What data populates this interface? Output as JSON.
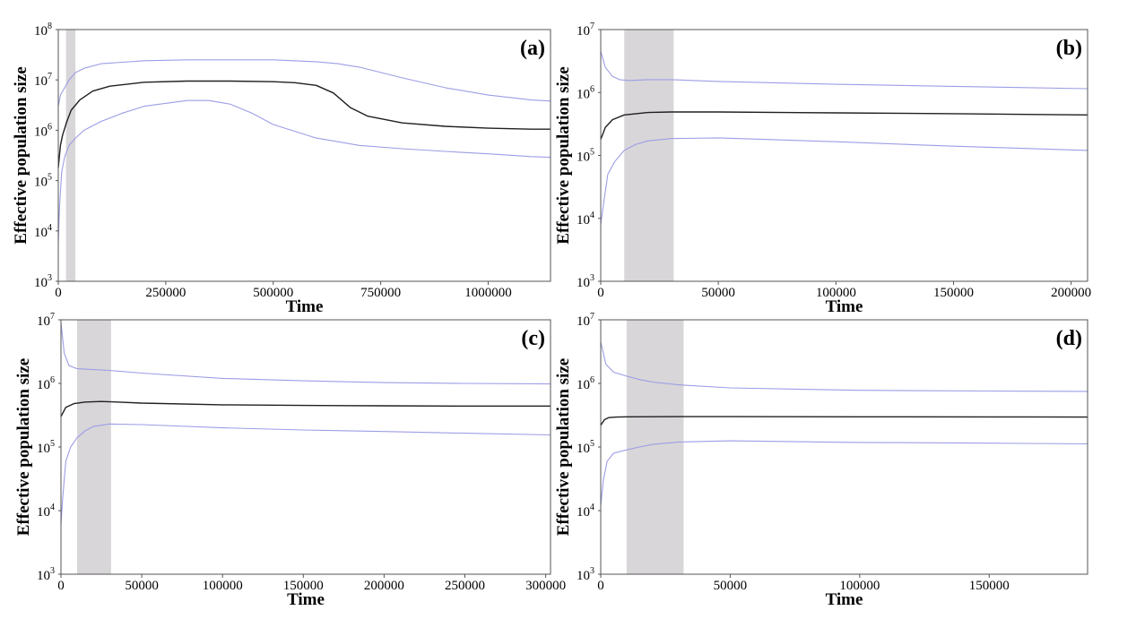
{
  "colors": {
    "median": "#202020",
    "hpd": "#9d9de6",
    "shade": "#d8d6d8",
    "frame": "#555555"
  },
  "chart_data": [
    {
      "type": "line",
      "panel_label": "(a)",
      "xlabel": "Time",
      "ylabel": "Effective population size",
      "yscale": "log",
      "xlim": [
        0,
        1145000
      ],
      "ylim": [
        1000,
        100000000
      ],
      "xticks": [
        0,
        250000,
        500000,
        750000,
        1000000
      ],
      "xtick_labels": [
        "0",
        "250000",
        "500000",
        "750000",
        "1000000"
      ],
      "ytick_exponents": [
        3,
        4,
        5,
        6,
        7,
        8
      ],
      "shaded_region": [
        18000,
        40000
      ],
      "series": [
        {
          "role": "upper",
          "x": [
            0,
            5000,
            15000,
            25000,
            40000,
            60000,
            100000,
            200000,
            300000,
            400000,
            500000,
            600000,
            650000,
            700000,
            800000,
            900000,
            1000000,
            1100000,
            1145000
          ],
          "y": [
            3000000,
            5000000,
            7000000,
            10000000,
            14000000,
            17000000,
            21000000,
            24000000,
            25000000,
            25000000,
            25000000,
            23000000,
            21000000,
            18000000,
            11000000,
            7000000,
            5000000,
            4000000,
            3800000
          ]
        },
        {
          "role": "median",
          "x": [
            0,
            5000,
            10000,
            20000,
            30000,
            50000,
            80000,
            120000,
            200000,
            300000,
            400000,
            500000,
            550000,
            600000,
            640000,
            680000,
            720000,
            800000,
            900000,
            1000000,
            1100000,
            1145000
          ],
          "y": [
            180000,
            500000,
            800000,
            1500000,
            2500000,
            4000000,
            6000000,
            7500000,
            9000000,
            9500000,
            9500000,
            9200000,
            8800000,
            7800000,
            5500000,
            2800000,
            1900000,
            1400000,
            1200000,
            1100000,
            1050000,
            1050000
          ]
        },
        {
          "role": "lower",
          "x": [
            0,
            3000,
            8000,
            15000,
            25000,
            40000,
            60000,
            100000,
            150000,
            200000,
            300000,
            350000,
            400000,
            450000,
            500000,
            600000,
            700000,
            800000,
            900000,
            1000000,
            1100000,
            1145000
          ],
          "y": [
            6000,
            30000,
            150000,
            300000,
            500000,
            700000,
            1000000,
            1500000,
            2200000,
            3000000,
            3900000,
            3900000,
            3300000,
            2200000,
            1300000,
            700000,
            500000,
            430000,
            380000,
            340000,
            300000,
            290000
          ]
        }
      ]
    },
    {
      "type": "line",
      "panel_label": "(b)",
      "xlabel": "Time",
      "ylabel": "Effective population size",
      "yscale": "log",
      "xlim": [
        0,
        207000
      ],
      "ylim": [
        1000,
        10000000
      ],
      "xticks": [
        0,
        50000,
        100000,
        150000,
        200000
      ],
      "xtick_labels": [
        "0",
        "50000",
        "100000",
        "150000",
        "200000"
      ],
      "ytick_exponents": [
        3,
        4,
        5,
        6,
        7
      ],
      "shaded_region": [
        10000,
        31000
      ],
      "series": [
        {
          "role": "upper",
          "x": [
            0,
            2000,
            5000,
            8000,
            12000,
            20000,
            30000,
            50000,
            100000,
            150000,
            207000
          ],
          "y": [
            4500000,
            2500000,
            1800000,
            1600000,
            1550000,
            1600000,
            1600000,
            1500000,
            1350000,
            1250000,
            1150000
          ]
        },
        {
          "role": "median",
          "x": [
            0,
            2000,
            5000,
            10000,
            20000,
            30000,
            50000,
            100000,
            150000,
            207000
          ],
          "y": [
            180000,
            280000,
            370000,
            440000,
            480000,
            490000,
            490000,
            475000,
            460000,
            440000
          ]
        },
        {
          "role": "lower",
          "x": [
            0,
            1000,
            3000,
            6000,
            10000,
            15000,
            20000,
            30000,
            50000,
            100000,
            150000,
            207000
          ],
          "y": [
            8000,
            15000,
            50000,
            80000,
            120000,
            150000,
            170000,
            185000,
            190000,
            165000,
            140000,
            120000
          ]
        }
      ]
    },
    {
      "type": "line",
      "panel_label": "(c)",
      "xlabel": "Time",
      "ylabel": "Effective population size",
      "yscale": "log",
      "xlim": [
        0,
        303000
      ],
      "ylim": [
        1000,
        10000000
      ],
      "xticks": [
        0,
        50000,
        100000,
        150000,
        200000,
        250000,
        300000
      ],
      "xtick_labels": [
        "0",
        "50000",
        "100000",
        "150000",
        "200000",
        "250000",
        "300000"
      ],
      "ytick_exponents": [
        3,
        4,
        5,
        6,
        7
      ],
      "shaded_region": [
        10000,
        31000
      ],
      "series": [
        {
          "role": "upper",
          "x": [
            0,
            2000,
            5000,
            10000,
            20000,
            30000,
            50000,
            100000,
            150000,
            200000,
            250000,
            303000
          ],
          "y": [
            9000000,
            3000000,
            1900000,
            1700000,
            1650000,
            1600000,
            1450000,
            1200000,
            1100000,
            1030000,
            1000000,
            980000
          ]
        },
        {
          "role": "median",
          "x": [
            0,
            3000,
            8000,
            15000,
            25000,
            35000,
            50000,
            100000,
            150000,
            200000,
            250000,
            303000
          ],
          "y": [
            300000,
            420000,
            480000,
            510000,
            520000,
            510000,
            490000,
            460000,
            450000,
            445000,
            440000,
            440000
          ]
        },
        {
          "role": "lower",
          "x": [
            0,
            1000,
            3000,
            6000,
            10000,
            15000,
            20000,
            30000,
            50000,
            100000,
            150000,
            200000,
            250000,
            303000
          ],
          "y": [
            6000,
            15000,
            60000,
            100000,
            140000,
            180000,
            210000,
            230000,
            225000,
            200000,
            185000,
            175000,
            165000,
            155000
          ]
        }
      ]
    },
    {
      "type": "line",
      "panel_label": "(d)",
      "xlabel": "Time",
      "ylabel": "Effective population size",
      "yscale": "log",
      "xlim": [
        0,
        188000
      ],
      "ylim": [
        1000,
        10000000
      ],
      "xticks": [
        0,
        50000,
        100000,
        150000
      ],
      "xtick_labels": [
        "0",
        "50000",
        "100000",
        "150000"
      ],
      "ytick_exponents": [
        3,
        4,
        5,
        6,
        7
      ],
      "shaded_region": [
        10000,
        32000
      ],
      "series": [
        {
          "role": "upper",
          "x": [
            0,
            2000,
            5000,
            10000,
            15000,
            20000,
            30000,
            50000,
            100000,
            150000,
            188000
          ],
          "y": [
            4500000,
            2000000,
            1500000,
            1300000,
            1150000,
            1050000,
            950000,
            850000,
            780000,
            760000,
            750000
          ]
        },
        {
          "role": "median",
          "x": [
            0,
            1500,
            3000,
            6000,
            10000,
            30000,
            50000,
            100000,
            150000,
            188000
          ],
          "y": [
            220000,
            270000,
            290000,
            295000,
            298000,
            300000,
            300000,
            298000,
            297000,
            295000
          ]
        },
        {
          "role": "lower",
          "x": [
            0,
            1000,
            2500,
            5000,
            10000,
            15000,
            20000,
            30000,
            50000,
            100000,
            150000,
            188000
          ],
          "y": [
            12000,
            30000,
            60000,
            80000,
            90000,
            100000,
            110000,
            120000,
            125000,
            118000,
            115000,
            112000
          ]
        }
      ]
    }
  ]
}
